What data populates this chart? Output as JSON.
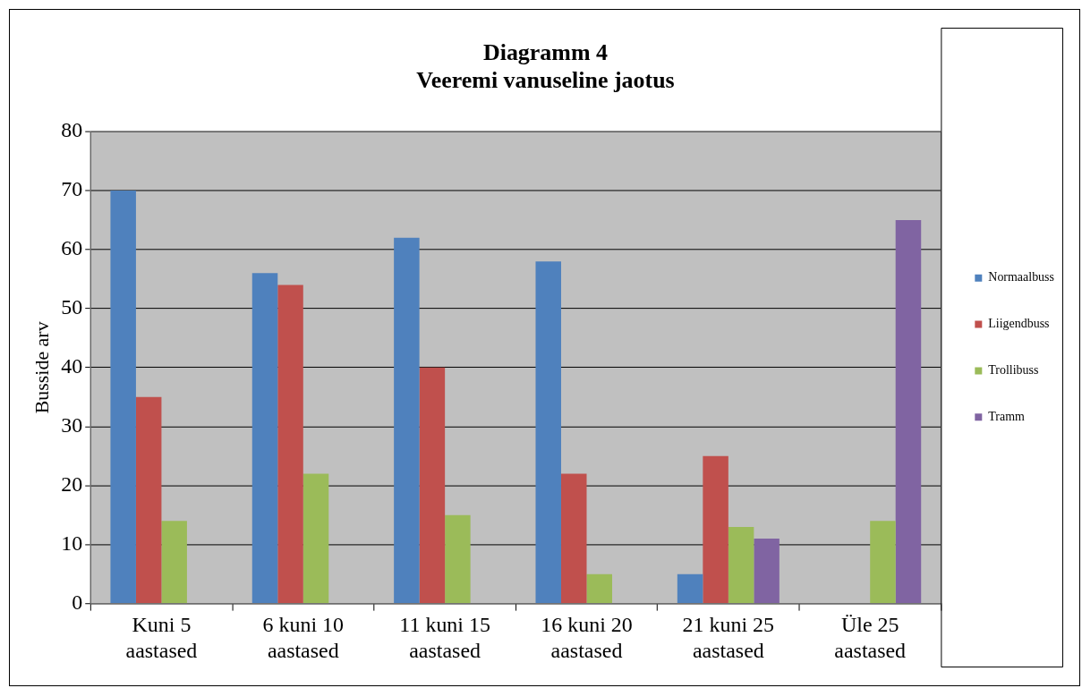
{
  "chart_data": {
    "type": "bar",
    "title": "Diagramm 4",
    "subtitle": "Veeremi vanuseline jaotus",
    "ylabel": "Busside arv",
    "categories": [
      "Kuni 5 aastased",
      "6 kuni 10 aastased",
      "11 kuni 15 aastased",
      "16 kuni 20 aastased",
      "21 kuni 25 aastased",
      "Üle 25 aastased"
    ],
    "series": [
      {
        "name": "Normaalbuss",
        "color": "#4f81bd",
        "values": [
          70,
          56,
          62,
          58,
          5,
          null
        ]
      },
      {
        "name": "Liigendbuss",
        "color": "#c0504d",
        "values": [
          35,
          54,
          40,
          22,
          25,
          null
        ]
      },
      {
        "name": "Trollibuss",
        "color": "#9bbb59",
        "values": [
          14,
          22,
          15,
          5,
          13,
          14
        ]
      },
      {
        "name": "Tramm",
        "color": "#8064a2",
        "values": [
          null,
          null,
          null,
          null,
          11,
          65
        ]
      }
    ],
    "ylim": [
      0,
      80
    ],
    "yticks": [
      0,
      10,
      20,
      30,
      40,
      50,
      60,
      70,
      80
    ],
    "grid": "y",
    "legend": "right"
  }
}
